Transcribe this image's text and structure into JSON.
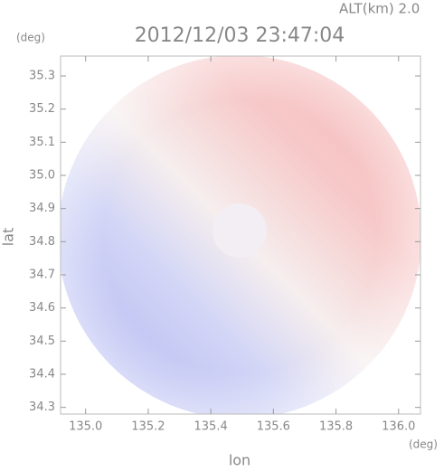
{
  "chart_data": {
    "type": "radar-image",
    "title": "2012/12/03 23:47:04",
    "annotation": "ALT(km) 2.0",
    "x_label": "lon",
    "y_label": "lat",
    "x_unit": "(deg)",
    "y_unit": "(deg)",
    "xlim": [
      134.92,
      136.07
    ],
    "xticks": [
      {
        "value": 135,
        "label": "135.0"
      },
      {
        "value": 135.2,
        "label": "135.2"
      },
      {
        "value": 135.4,
        "label": "135.4"
      },
      {
        "value": 135.6,
        "label": "135.6"
      },
      {
        "value": 135.8,
        "label": "135.8"
      },
      {
        "value": 136,
        "label": "136.0"
      }
    ],
    "ylim": [
      34.28,
      35.36
    ],
    "yticks": [
      34.3,
      34.4,
      34.5,
      34.6,
      34.7,
      34.8,
      34.9,
      {
        "value": 35,
        "label": "35.0"
      },
      35.1,
      35.2,
      35.3
    ]
  }
}
